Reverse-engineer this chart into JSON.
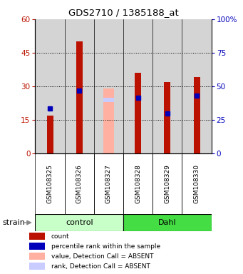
{
  "title": "GDS2710 / 1385188_at",
  "samples": [
    "GSM108325",
    "GSM108326",
    "GSM108327",
    "GSM108328",
    "GSM108329",
    "GSM108330"
  ],
  "count_values": [
    17,
    50,
    0,
    36,
    32,
    34
  ],
  "rank_values": [
    20,
    28,
    0,
    25,
    18,
    26
  ],
  "absent_count": [
    0,
    0,
    29,
    0,
    0,
    0
  ],
  "absent_rank": [
    0,
    0,
    24,
    0,
    0,
    0
  ],
  "ylim_left": [
    0,
    60
  ],
  "ylim_right": [
    0,
    100
  ],
  "yticks_left": [
    0,
    15,
    30,
    45,
    60
  ],
  "yticks_right": [
    0,
    25,
    50,
    75,
    100
  ],
  "yticklabels_left": [
    "0",
    "15",
    "30",
    "45",
    "60"
  ],
  "yticklabels_right": [
    "0",
    "25",
    "50",
    "75",
    "100%"
  ],
  "bar_color_red": "#bb1100",
  "bar_color_absent": "#ffb0a0",
  "rank_color_blue": "#0000bb",
  "rank_color_absent": "#c8ccff",
  "group_color_control": "#c8ffc8",
  "group_color_dahl": "#44dd44",
  "sample_bg_color": "#d4d4d4",
  "legend_items": [
    {
      "color": "#bb1100",
      "label": "count"
    },
    {
      "color": "#0000bb",
      "label": "percentile rank within the sample"
    },
    {
      "color": "#ffb0a0",
      "label": "value, Detection Call = ABSENT"
    },
    {
      "color": "#c8ccff",
      "label": "rank, Detection Call = ABSENT"
    }
  ],
  "control_label": "control",
  "dahl_label": "Dahl",
  "strain_label": "strain"
}
